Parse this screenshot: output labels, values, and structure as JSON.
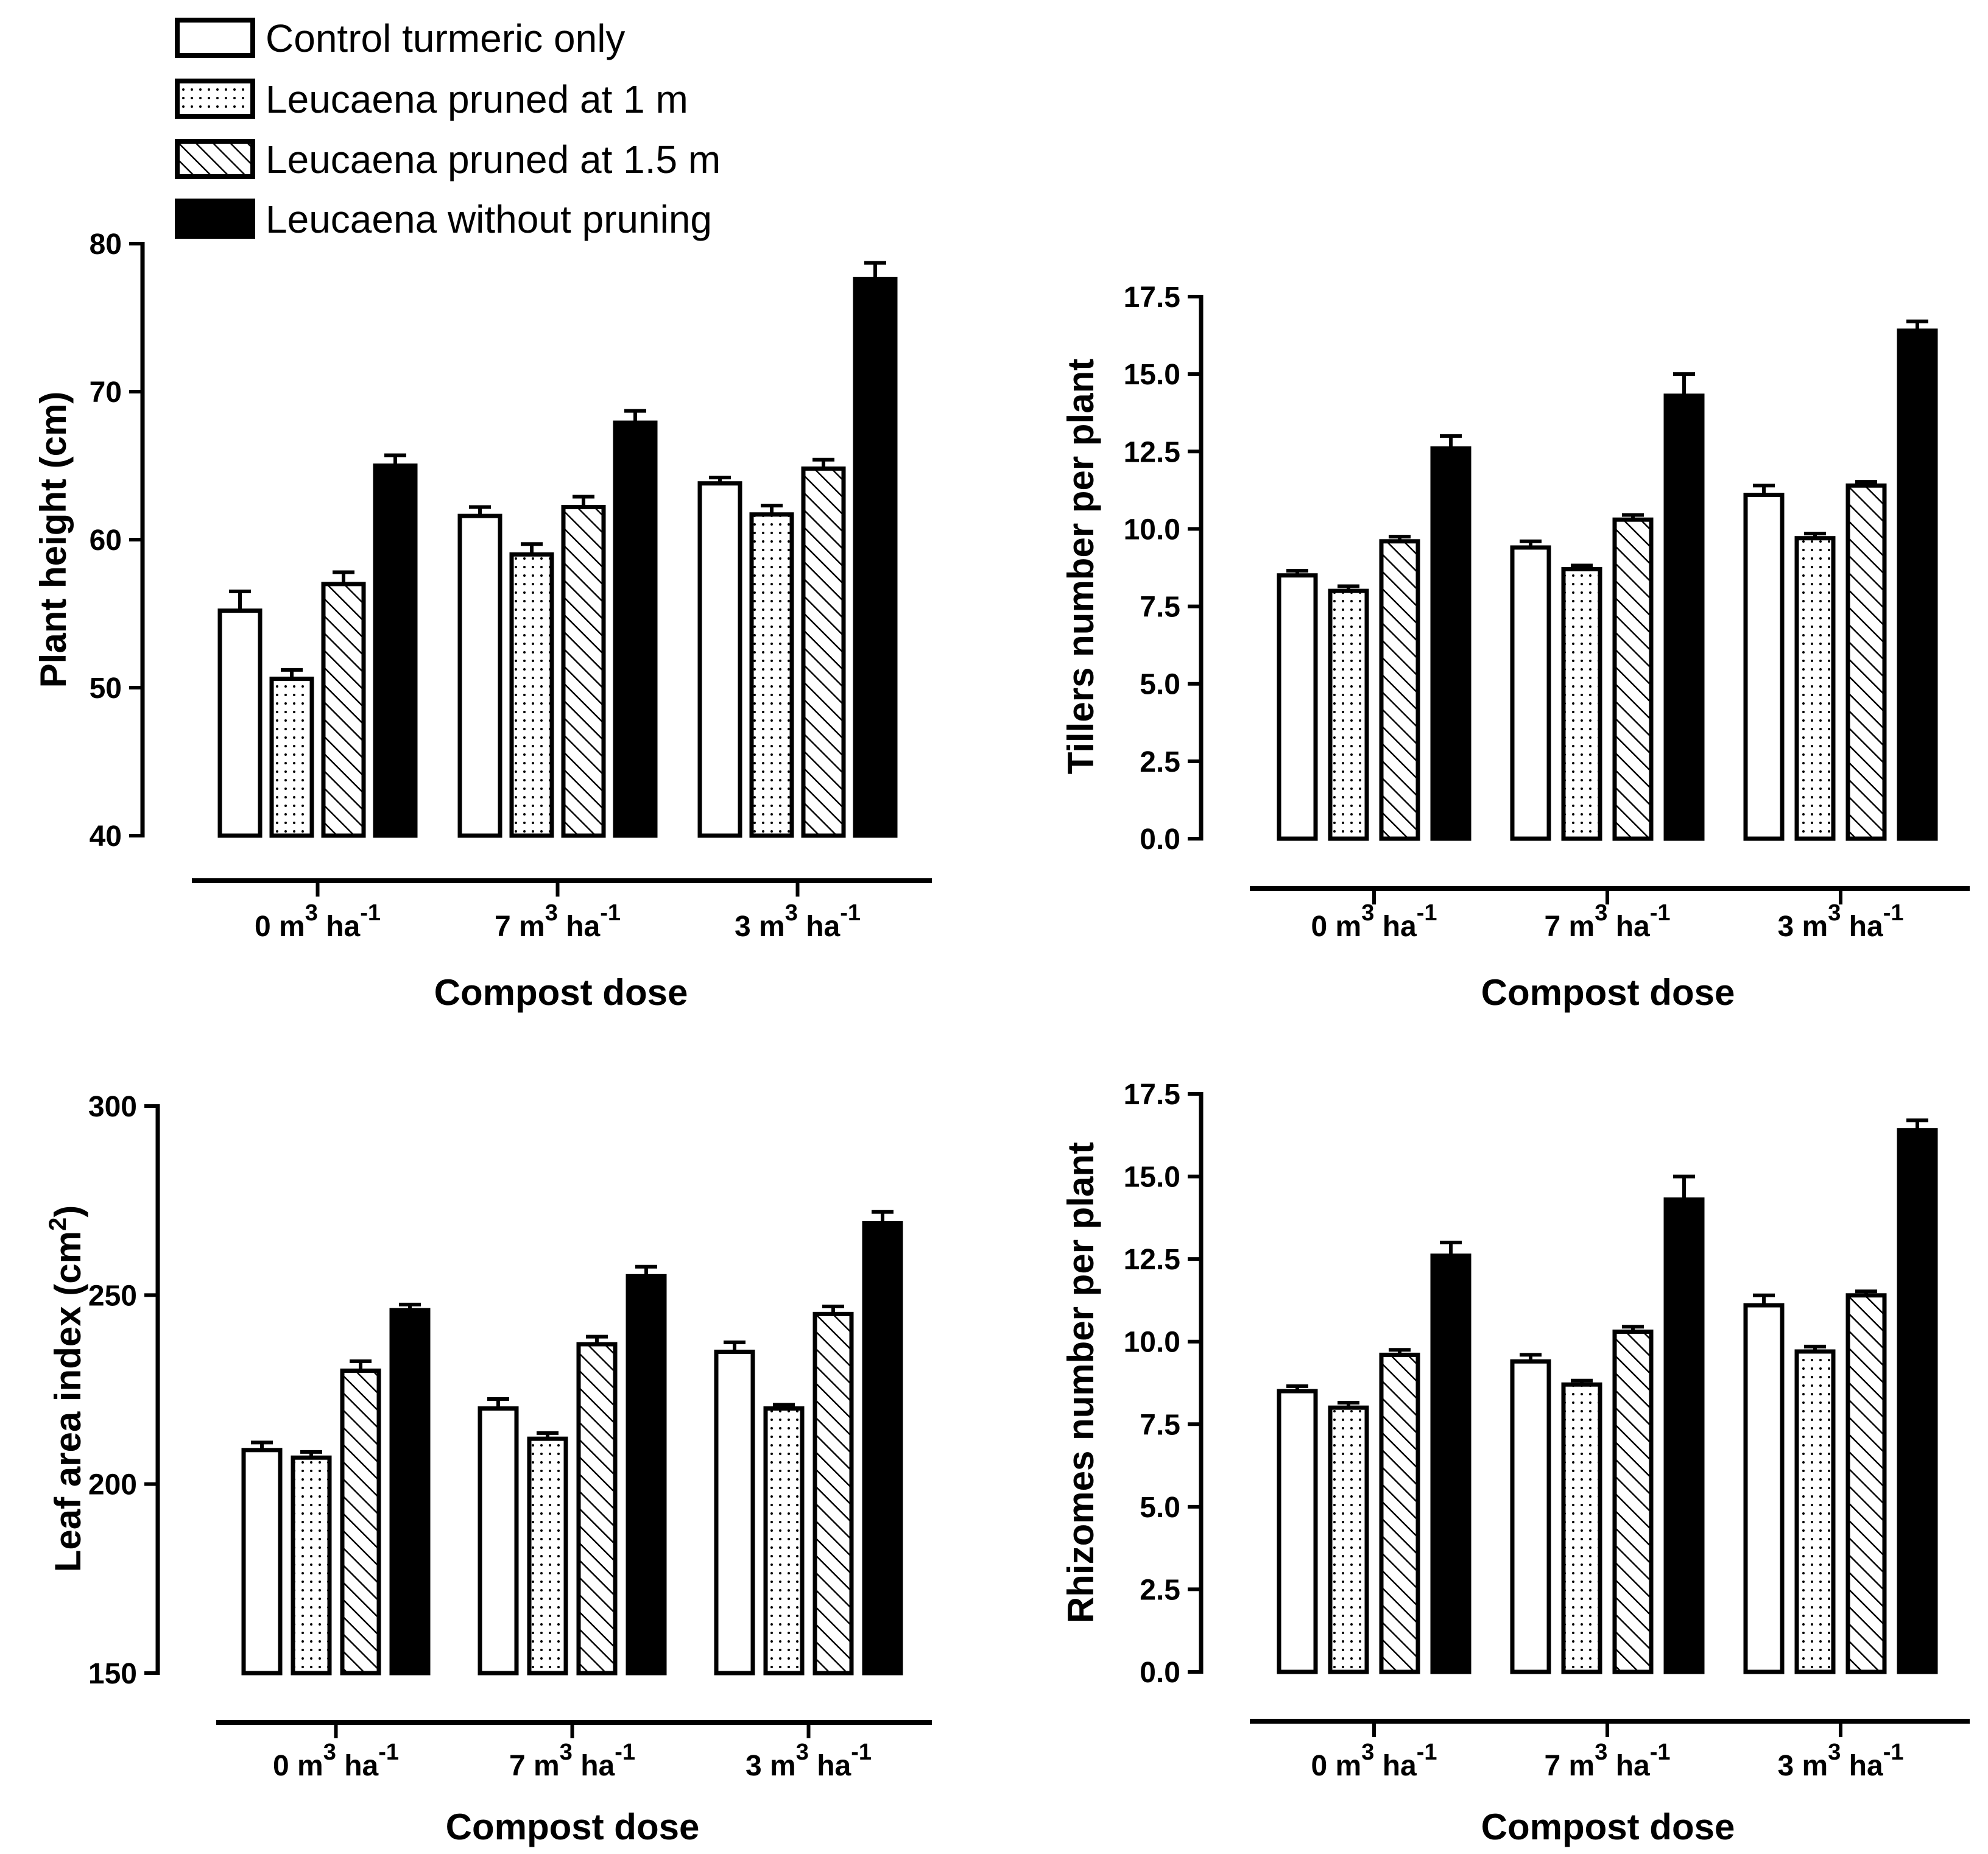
{
  "legend": {
    "items": [
      {
        "label": "Control turmeric only",
        "pattern": "white"
      },
      {
        "label": "Leucaena pruned at 1 m",
        "pattern": "dots"
      },
      {
        "label": "Leucaena pruned at 1.5 m",
        "pattern": "hatch"
      },
      {
        "label": "Leucaena without pruning",
        "pattern": "black"
      }
    ]
  },
  "chart_data": [
    {
      "id": "plant-height",
      "type": "bar",
      "ylabel": "Plant height  (cm)",
      "xlabel": "Compost dose",
      "categories": [
        {
          "num": "0",
          "unit": "m",
          "exp": "3",
          "unit2": "ha",
          "exp2": "-1"
        },
        {
          "num": "7",
          "unit": "m",
          "exp": "3",
          "unit2": "ha",
          "exp2": "-1"
        },
        {
          "num": "3",
          "unit": "m",
          "exp": "3",
          "unit2": "ha",
          "exp2": "-1"
        }
      ],
      "ylim": [
        40,
        80
      ],
      "yticks": [
        "40",
        "50",
        "60",
        "70",
        "80"
      ],
      "ytick_values": [
        40,
        50,
        60,
        70,
        80
      ],
      "series": [
        {
          "name": "Control turmeric only",
          "values": [
            55.2,
            61.6,
            63.8
          ],
          "errors": [
            1.3,
            0.6,
            0.4
          ]
        },
        {
          "name": "Leucaena pruned at 1 m",
          "values": [
            50.6,
            59.0,
            61.7
          ],
          "errors": [
            0.6,
            0.7,
            0.6
          ]
        },
        {
          "name": "Leucaena pruned at 1.5 m",
          "values": [
            57.0,
            62.2,
            64.8
          ],
          "errors": [
            0.8,
            0.7,
            0.6
          ]
        },
        {
          "name": "Leucaena without pruning",
          "values": [
            65.0,
            67.9,
            77.6
          ],
          "errors": [
            0.7,
            0.8,
            1.1
          ]
        }
      ]
    },
    {
      "id": "tillers",
      "type": "bar",
      "ylabel": "Tillers number per plant",
      "xlabel": "Compost dose",
      "categories": [
        {
          "num": "0",
          "unit": "m",
          "exp": "3",
          "unit2": "ha",
          "exp2": "-1"
        },
        {
          "num": "7",
          "unit": "m",
          "exp": "3",
          "unit2": "ha",
          "exp2": "-1"
        },
        {
          "num": "3",
          "unit": "m",
          "exp": "3",
          "unit2": "ha",
          "exp2": "-1"
        }
      ],
      "ylim": [
        0,
        17.5
      ],
      "yticks": [
        "0.0",
        "2.5",
        "5.0",
        "7.5",
        "10.0",
        "12.5",
        "15.0",
        "17.5"
      ],
      "ytick_values": [
        0,
        2.5,
        5,
        7.5,
        10,
        12.5,
        15,
        17.5
      ],
      "series": [
        {
          "name": "Control turmeric only",
          "values": [
            8.5,
            9.4,
            11.1
          ],
          "errors": [
            0.15,
            0.2,
            0.3
          ]
        },
        {
          "name": "Leucaena pruned at 1 m",
          "values": [
            8.0,
            8.7,
            9.7
          ],
          "errors": [
            0.15,
            0.12,
            0.15
          ]
        },
        {
          "name": "Leucaena pruned at 1.5 m",
          "values": [
            9.6,
            10.3,
            11.4
          ],
          "errors": [
            0.15,
            0.15,
            0.12
          ]
        },
        {
          "name": "Leucaena without pruning",
          "values": [
            12.6,
            14.3,
            16.4
          ],
          "errors": [
            0.4,
            0.7,
            0.3
          ]
        }
      ]
    },
    {
      "id": "leaf-area",
      "type": "bar",
      "ylabel": "Leaf area index (cm",
      "ylabel_sup": "2",
      "ylabel_close": ")",
      "xlabel": "Compost dose",
      "categories": [
        {
          "num": "0",
          "unit": "m",
          "exp": "3",
          "unit2": "ha",
          "exp2": "-1"
        },
        {
          "num": "7",
          "unit": "m",
          "exp": "3",
          "unit2": "ha",
          "exp2": "-1"
        },
        {
          "num": "3",
          "unit": "m",
          "exp": "3",
          "unit2": "ha",
          "exp2": "-1"
        }
      ],
      "ylim": [
        150,
        300
      ],
      "yticks": [
        "150",
        "200",
        "250",
        "300"
      ],
      "ytick_values": [
        150,
        200,
        250,
        300
      ],
      "series": [
        {
          "name": "Control turmeric only",
          "values": [
            209,
            220,
            235
          ],
          "errors": [
            2,
            2.5,
            2.5
          ]
        },
        {
          "name": "Leucaena pruned at 1 m",
          "values": [
            207,
            212,
            220
          ],
          "errors": [
            1.5,
            1.5,
            1
          ]
        },
        {
          "name": "Leucaena pruned at 1.5 m",
          "values": [
            230,
            237,
            245
          ],
          "errors": [
            2.5,
            2,
            2
          ]
        },
        {
          "name": "Leucaena without pruning",
          "values": [
            246,
            255,
            269
          ],
          "errors": [
            1.5,
            2.5,
            3
          ]
        }
      ]
    },
    {
      "id": "rhizomes",
      "type": "bar",
      "ylabel": "Rhizomes number per plant",
      "xlabel": "Compost dose",
      "categories": [
        {
          "num": "0",
          "unit": "m",
          "exp": "3",
          "unit2": "ha",
          "exp2": "-1"
        },
        {
          "num": "7",
          "unit": "m",
          "exp": "3",
          "unit2": "ha",
          "exp2": "-1"
        },
        {
          "num": "3",
          "unit": "m",
          "exp": "3",
          "unit2": "ha",
          "exp2": "-1"
        }
      ],
      "ylim": [
        0,
        17.5
      ],
      "yticks": [
        "0.0",
        "2.5",
        "5.0",
        "7.5",
        "10.0",
        "12.5",
        "15.0",
        "17.5"
      ],
      "ytick_values": [
        0,
        2.5,
        5,
        7.5,
        10,
        12.5,
        15,
        17.5
      ],
      "series": [
        {
          "name": "Control turmeric only",
          "values": [
            8.5,
            9.4,
            11.1
          ],
          "errors": [
            0.15,
            0.2,
            0.3
          ]
        },
        {
          "name": "Leucaena pruned at 1 m",
          "values": [
            8.0,
            8.7,
            9.7
          ],
          "errors": [
            0.15,
            0.12,
            0.15
          ]
        },
        {
          "name": "Leucaena pruned at 1.5 m",
          "values": [
            9.6,
            10.3,
            11.4
          ],
          "errors": [
            0.15,
            0.15,
            0.12
          ]
        },
        {
          "name": "Leucaena without pruning",
          "values": [
            12.6,
            14.3,
            16.4
          ],
          "errors": [
            0.4,
            0.7,
            0.3
          ]
        }
      ]
    }
  ]
}
